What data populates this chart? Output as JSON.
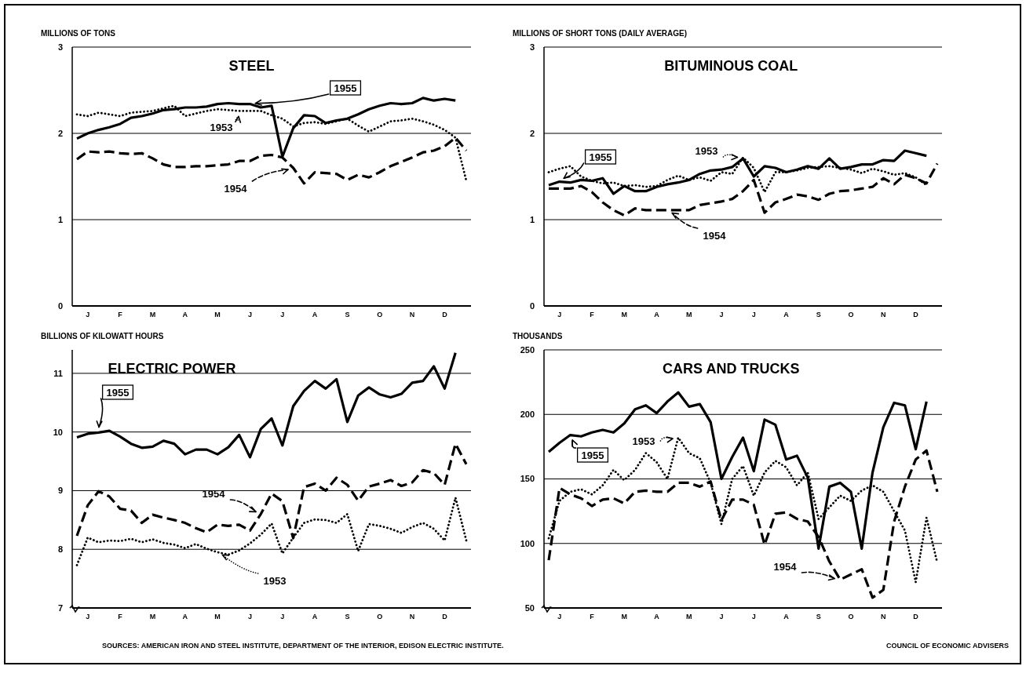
{
  "chart_data": [
    {
      "type": "line",
      "title": "STEEL",
      "ylabel": "MILLIONS OF TONS",
      "ylim": [
        0,
        3
      ],
      "yticks": [
        0,
        1,
        2,
        3
      ],
      "grid": "y",
      "categories": [
        null,
        "J",
        null,
        null,
        "F",
        null,
        null,
        "M",
        null,
        null,
        "A",
        null,
        null,
        "M",
        null,
        null,
        "J",
        null,
        null,
        "J",
        null,
        null,
        "A",
        null,
        null,
        "S",
        null,
        null,
        "O",
        null,
        null,
        "N",
        null,
        null,
        "D",
        null,
        null
      ],
      "series": [
        {
          "name": "1955",
          "color": "#000000",
          "line_style": "solid",
          "values": [
            1.94,
            2.0,
            2.04,
            2.07,
            2.11,
            2.18,
            2.2,
            2.23,
            2.27,
            2.28,
            2.3,
            2.3,
            2.31,
            2.34,
            2.35,
            2.34,
            2.34,
            2.3,
            2.32,
            1.73,
            2.06,
            2.21,
            2.2,
            2.12,
            2.15,
            2.17,
            2.22,
            2.28,
            2.32,
            2.35,
            2.34,
            2.35,
            2.41,
            2.38,
            2.4,
            2.38,
            null
          ]
        },
        {
          "name": "1953",
          "color": "#000000",
          "line_style": "dotted",
          "values": [
            2.22,
            2.2,
            2.24,
            2.22,
            2.2,
            2.24,
            2.25,
            2.26,
            2.29,
            2.32,
            2.2,
            2.23,
            2.26,
            2.28,
            2.27,
            2.26,
            2.26,
            2.26,
            2.21,
            2.17,
            2.08,
            2.12,
            2.13,
            2.11,
            2.14,
            2.17,
            2.09,
            2.02,
            2.08,
            2.14,
            2.15,
            2.17,
            2.14,
            2.1,
            2.04,
            1.95,
            1.45
          ]
        },
        {
          "name": "1954",
          "color": "#000000",
          "line_style": "dashed",
          "values": [
            1.7,
            1.79,
            1.78,
            1.79,
            1.77,
            1.76,
            1.77,
            1.71,
            1.64,
            1.61,
            1.61,
            1.62,
            1.62,
            1.63,
            1.64,
            1.68,
            1.68,
            1.74,
            1.75,
            1.72,
            1.6,
            1.42,
            1.55,
            1.54,
            1.53,
            1.46,
            1.52,
            1.49,
            1.55,
            1.62,
            1.67,
            1.72,
            1.78,
            1.8,
            1.85,
            1.95,
            1.8
          ]
        }
      ]
    },
    {
      "type": "line",
      "title": "BITUMINOUS COAL",
      "ylabel": "MILLIONS OF SHORT TONS (DAILY AVERAGE)",
      "ylim": [
        0,
        3
      ],
      "yticks": [
        0,
        1,
        2,
        3
      ],
      "grid": "y",
      "categories": [
        null,
        "J",
        null,
        null,
        "F",
        null,
        null,
        "M",
        null,
        null,
        "A",
        null,
        null,
        "M",
        null,
        null,
        "J",
        null,
        null,
        "J",
        null,
        null,
        "A",
        null,
        null,
        "S",
        null,
        null,
        "O",
        null,
        null,
        "N",
        null,
        null,
        "D",
        null,
        null
      ],
      "series": [
        {
          "name": "1955",
          "color": "#000000",
          "line_style": "solid",
          "values": [
            1.4,
            1.44,
            1.43,
            1.46,
            1.45,
            1.48,
            1.3,
            1.39,
            1.33,
            1.33,
            1.38,
            1.41,
            1.43,
            1.46,
            1.53,
            1.57,
            1.58,
            1.61,
            1.71,
            1.5,
            1.62,
            1.6,
            1.55,
            1.58,
            1.62,
            1.59,
            1.71,
            1.59,
            1.61,
            1.64,
            1.64,
            1.69,
            1.68,
            1.8,
            1.77,
            1.74,
            null
          ]
        },
        {
          "name": "1953",
          "color": "#000000",
          "line_style": "dotted",
          "values": [
            1.55,
            1.59,
            1.62,
            1.5,
            1.45,
            1.42,
            1.43,
            1.39,
            1.4,
            1.38,
            1.39,
            1.46,
            1.51,
            1.46,
            1.49,
            1.45,
            1.55,
            1.53,
            1.72,
            1.6,
            1.32,
            1.55,
            1.55,
            1.57,
            1.6,
            1.61,
            1.62,
            1.6,
            1.58,
            1.54,
            1.59,
            1.56,
            1.52,
            1.54,
            1.49,
            1.4,
            null
          ]
        },
        {
          "name": "1954",
          "color": "#000000",
          "line_style": "dashed",
          "values": [
            1.36,
            1.36,
            1.36,
            1.39,
            1.32,
            1.2,
            1.11,
            1.05,
            1.13,
            1.11,
            1.11,
            1.11,
            1.11,
            1.11,
            1.17,
            1.19,
            1.21,
            1.24,
            1.33,
            1.46,
            1.08,
            1.2,
            1.24,
            1.29,
            1.27,
            1.23,
            1.3,
            1.33,
            1.34,
            1.36,
            1.38,
            1.48,
            1.41,
            1.52,
            1.48,
            1.42,
            1.65
          ]
        }
      ]
    },
    {
      "type": "line",
      "title": "ELECTRIC POWER",
      "ylabel": "BILLIONS OF KILOWATT HOURS",
      "ylim": [
        7,
        11.4
      ],
      "yticks": [
        7,
        8,
        9,
        10,
        11
      ],
      "grid": "y",
      "categories": [
        null,
        "J",
        null,
        null,
        "F",
        null,
        null,
        "M",
        null,
        null,
        "A",
        null,
        null,
        "M",
        null,
        null,
        "J",
        null,
        null,
        "J",
        null,
        null,
        "A",
        null,
        null,
        "S",
        null,
        null,
        "O",
        null,
        null,
        "N",
        null,
        null,
        "D",
        null,
        null
      ],
      "series": [
        {
          "name": "1955",
          "color": "#000000",
          "line_style": "solid",
          "values": [
            9.91,
            9.97,
            9.99,
            10.02,
            9.92,
            9.8,
            9.73,
            9.75,
            9.85,
            9.8,
            9.62,
            9.7,
            9.7,
            9.62,
            9.74,
            9.95,
            9.57,
            10.05,
            10.23,
            9.77,
            10.44,
            10.7,
            10.87,
            10.74,
            10.9,
            10.17,
            10.62,
            10.76,
            10.64,
            10.59,
            10.65,
            10.84,
            10.87,
            11.12,
            10.74,
            11.35,
            null
          ]
        },
        {
          "name": "1954",
          "color": "#000000",
          "line_style": "dashed",
          "values": [
            8.23,
            8.75,
            8.99,
            8.9,
            8.69,
            8.66,
            8.45,
            8.59,
            8.54,
            8.5,
            8.45,
            8.36,
            8.29,
            8.42,
            8.4,
            8.42,
            8.32,
            8.6,
            8.95,
            8.82,
            8.19,
            9.06,
            9.12,
            9.0,
            9.22,
            9.1,
            8.83,
            9.07,
            9.12,
            9.18,
            9.08,
            9.14,
            9.35,
            9.3,
            9.1,
            9.8,
            9.45
          ]
        },
        {
          "name": "1953",
          "color": "#000000",
          "line_style": "dotted",
          "values": [
            7.73,
            8.2,
            8.12,
            8.15,
            8.14,
            8.18,
            8.12,
            8.17,
            8.11,
            8.08,
            8.02,
            8.09,
            8.01,
            7.95,
            7.91,
            7.98,
            8.1,
            8.25,
            8.44,
            7.93,
            8.2,
            8.45,
            8.51,
            8.5,
            8.45,
            8.6,
            7.97,
            8.43,
            8.4,
            8.35,
            8.28,
            8.38,
            8.45,
            8.35,
            8.15,
            8.88,
            8.15
          ]
        }
      ]
    },
    {
      "type": "line",
      "title": "CARS AND TRUCKS",
      "ylabel": "THOUSANDS",
      "ylim": [
        50,
        250
      ],
      "yticks": [
        50,
        100,
        150,
        200,
        250
      ],
      "grid": "y",
      "categories": [
        null,
        "J",
        null,
        null,
        "F",
        null,
        null,
        "M",
        null,
        null,
        "A",
        null,
        null,
        "M",
        null,
        null,
        "J",
        null,
        null,
        "J",
        null,
        null,
        "A",
        null,
        null,
        "S",
        null,
        null,
        "O",
        null,
        null,
        "N",
        null,
        null,
        "D",
        null,
        null
      ],
      "annotations": [
        "SOURCES: AMERICAN IRON AND STEEL INSTITUTE, DEPARTMENT OF THE INTERIOR, EDISON ELECTRIC INSTITUTE.",
        "COUNCIL OF ECONOMIC ADVISERS"
      ],
      "series": [
        {
          "name": "1955",
          "color": "#000000",
          "line_style": "solid",
          "values": [
            171,
            178,
            184,
            183,
            186,
            188,
            186,
            193,
            204,
            207,
            201,
            210,
            217,
            206,
            208,
            194,
            150,
            167,
            182,
            156,
            196,
            192,
            165,
            168,
            151,
            96,
            144,
            147,
            140,
            96,
            155,
            190,
            209,
            207,
            173,
            210,
            null
          ]
        },
        {
          "name": "1953",
          "color": "#000000",
          "line_style": "dotted",
          "values": [
            104,
            133,
            140,
            142,
            138,
            145,
            157,
            149,
            157,
            170,
            163,
            150,
            182,
            170,
            166,
            147,
            115,
            150,
            160,
            137,
            155,
            164,
            159,
            145,
            155,
            119,
            128,
            137,
            133,
            141,
            145,
            140,
            125,
            110,
            70,
            120,
            85
          ]
        },
        {
          "name": "1954",
          "color": "#000000",
          "line_style": "dashed",
          "values": [
            87,
            143,
            138,
            135,
            129,
            134,
            135,
            131,
            140,
            141,
            140,
            140,
            147,
            147,
            144,
            148,
            118,
            134,
            134,
            130,
            99,
            123,
            124,
            119,
            117,
            105,
            86,
            72,
            76,
            80,
            58,
            64,
            117,
            144,
            165,
            172,
            140
          ]
        }
      ]
    }
  ]
}
